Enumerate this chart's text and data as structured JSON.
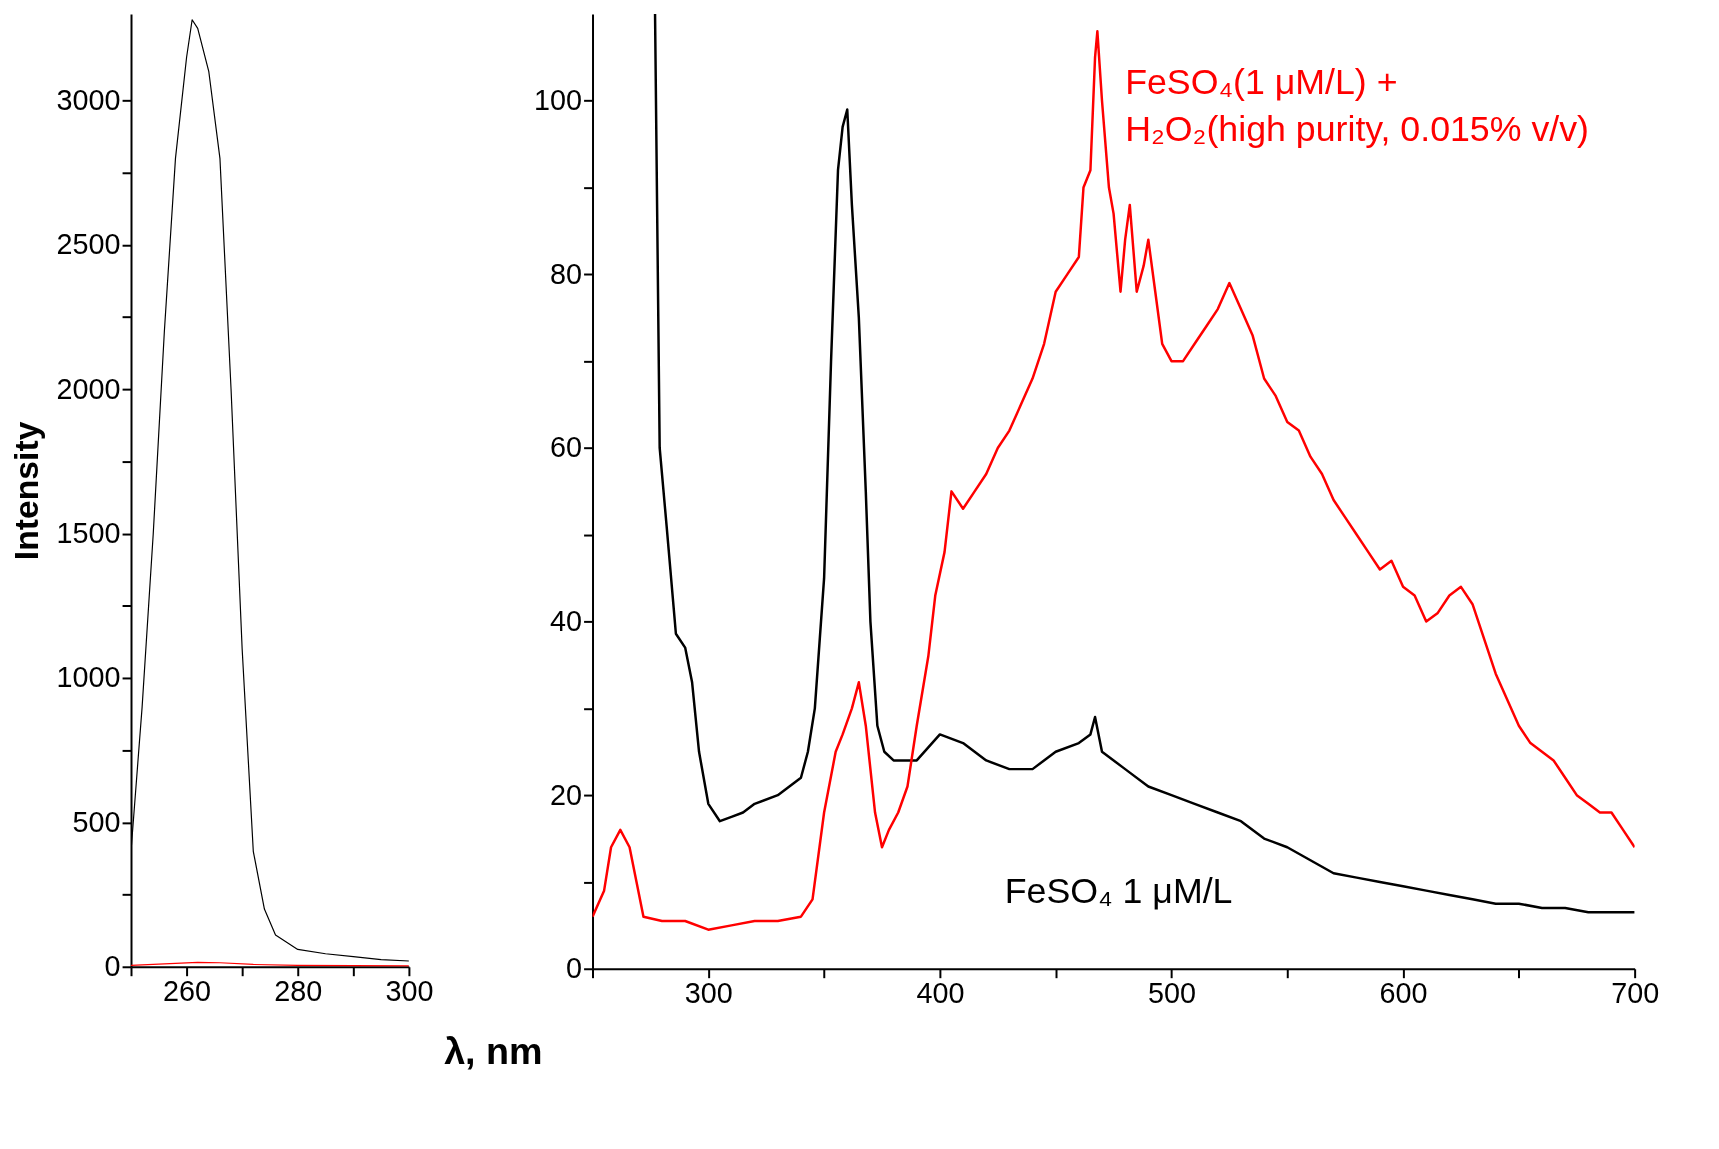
{
  "chart_data": [
    {
      "type": "line",
      "ylabel": "Intensity",
      "grid": false,
      "xlim": [
        250,
        300
      ],
      "ylim": [
        0,
        3300
      ],
      "xticks": [
        {
          "value": 250,
          "label": null
        },
        260,
        {
          "value": 270,
          "label": null
        },
        280,
        {
          "value": 290,
          "label": null
        },
        300
      ],
      "yticks": [
        0,
        {
          "value": 250,
          "label": null
        },
        500,
        {
          "value": 750,
          "label": null
        },
        1000,
        {
          "value": 1250,
          "label": null
        },
        1500,
        {
          "value": 1750,
          "label": null
        },
        2000,
        {
          "value": 2250,
          "label": null
        },
        2500,
        {
          "value": 2750,
          "label": null
        },
        3000
      ],
      "series": [
        {
          "color": "#000000",
          "x": [
            250,
            252,
            254,
            256,
            258,
            260,
            261,
            262,
            264,
            266,
            268,
            270,
            272,
            274,
            276,
            280,
            285,
            290,
            295,
            300
          ],
          "values": [
            400,
            900,
            1500,
            2200,
            2800,
            3150,
            3280,
            3250,
            3100,
            2800,
            2000,
            1100,
            400,
            200,
            110,
            60,
            45,
            35,
            25,
            20
          ]
        },
        {
          "color": "#ff0000",
          "x": [
            250,
            258,
            262,
            266,
            272,
            280,
            300
          ],
          "values": [
            5,
            12,
            15,
            14,
            8,
            5,
            3
          ]
        }
      ]
    },
    {
      "type": "line",
      "xlabel": "λ, nm",
      "grid": false,
      "xlim": [
        250,
        700
      ],
      "ylim": [
        0,
        110
      ],
      "xticks": [
        {
          "value": 250,
          "label": null
        },
        300,
        {
          "value": 350,
          "label": null
        },
        400,
        {
          "value": 450,
          "label": null
        },
        500,
        {
          "value": 550,
          "label": null
        },
        600,
        {
          "value": 650,
          "label": null
        },
        700
      ],
      "yticks": [
        0,
        {
          "value": 10,
          "label": null
        },
        20,
        {
          "value": 30,
          "label": null
        },
        40,
        {
          "value": 50,
          "label": null
        },
        60,
        {
          "value": 70,
          "label": null
        },
        80,
        {
          "value": 90,
          "label": null
        },
        100
      ],
      "series": [
        {
          "name": "FeSO₄ 1 μM/L",
          "color": "#000000",
          "x": [
            277,
            279,
            282,
            286,
            290,
            293,
            296,
            300,
            305,
            310,
            315,
            320,
            330,
            340,
            343,
            346,
            350,
            353,
            356,
            358,
            360,
            362,
            365,
            368,
            370,
            373,
            376,
            380,
            390,
            400,
            410,
            420,
            430,
            440,
            450,
            460,
            465,
            467,
            470,
            480,
            490,
            500,
            510,
            520,
            530,
            540,
            550,
            560,
            570,
            580,
            590,
            600,
            610,
            620,
            630,
            640,
            650,
            660,
            670,
            680,
            690,
            700
          ],
          "values": [
            110,
            60,
            51,
            38.6,
            37,
            33,
            25,
            19,
            17,
            17.5,
            18,
            19,
            20,
            22,
            25,
            30,
            45,
            70,
            92,
            97,
            99,
            88,
            75,
            55,
            40,
            28,
            25,
            24,
            24,
            27,
            26,
            24,
            23,
            23,
            25,
            26,
            27,
            29,
            25,
            23,
            21,
            20,
            19,
            18,
            17,
            15,
            14,
            12.5,
            11,
            10.5,
            10,
            9.5,
            9,
            8.5,
            8,
            7.5,
            7.5,
            7,
            7,
            6.5,
            6.5,
            6.5
          ]
        },
        {
          "name": "FeSO₄(1 μM/L) + H₂O₂(high purity, 0.015% v/v)",
          "color": "#ff0000",
          "x": [
            250,
            255,
            258,
            262,
            266,
            269,
            272,
            280,
            290,
            300,
            310,
            320,
            330,
            340,
            345,
            350,
            355,
            358,
            362,
            365,
            368,
            372,
            375,
            378,
            382,
            386,
            390,
            395,
            398,
            402,
            405,
            410,
            415,
            420,
            425,
            430,
            435,
            440,
            445,
            450,
            455,
            460,
            462,
            465,
            467,
            468,
            470,
            473,
            475,
            478,
            480,
            482,
            485,
            488,
            490,
            493,
            496,
            500,
            505,
            510,
            515,
            520,
            525,
            530,
            535,
            540,
            545,
            550,
            555,
            560,
            565,
            570,
            575,
            580,
            585,
            590,
            595,
            600,
            605,
            610,
            615,
            620,
            625,
            630,
            635,
            640,
            645,
            650,
            655,
            660,
            665,
            670,
            675,
            680,
            685,
            690,
            695,
            700
          ],
          "values": [
            6,
            9,
            14,
            16,
            14,
            10,
            6,
            5.5,
            5.5,
            4.5,
            5,
            5.5,
            5.5,
            6,
            8,
            18,
            25,
            27,
            30,
            33,
            28,
            18,
            14,
            16,
            18,
            21,
            28,
            36,
            43,
            48,
            55,
            53,
            55,
            57,
            60,
            62,
            65,
            68,
            72,
            78,
            80,
            82,
            90,
            92,
            105,
            108,
            100,
            90,
            87,
            78,
            84,
            88,
            78,
            81,
            84,
            78,
            72,
            70,
            70,
            72,
            74,
            76,
            79,
            76,
            73,
            68,
            66,
            63,
            62,
            59,
            57,
            54,
            52,
            50,
            48,
            46,
            47,
            44,
            43,
            40,
            41,
            43,
            44,
            42,
            38,
            34,
            31,
            28,
            26,
            25,
            24,
            22,
            20,
            19,
            18,
            18,
            16,
            14
          ]
        }
      ]
    }
  ]
}
